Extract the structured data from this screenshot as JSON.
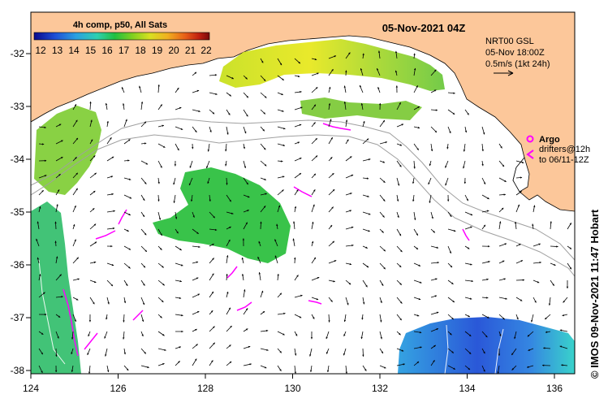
{
  "header": {
    "date_label": "05-Nov-2021 04Z"
  },
  "legend": {
    "title": "4h comp, p50, All Sats",
    "ticks": [
      "12",
      "13",
      "14",
      "15",
      "16",
      "17",
      "18",
      "19",
      "20",
      "21",
      "22"
    ],
    "colors": [
      "#0a0a8c",
      "#1f4fd6",
      "#2aa0e0",
      "#2fd0b0",
      "#20c040",
      "#7fd020",
      "#d8e020",
      "#f0b020",
      "#e86018",
      "#c02010",
      "#7a0a0a"
    ]
  },
  "info": {
    "model": "NRT00 GSL",
    "time": "05-Nov 18:00Z",
    "scale": "0.5m/s (1kt 24h)"
  },
  "argo_legend": {
    "argo_label": "Argo",
    "drifters_label": "drifters@12h",
    "drifters_range": "to 06/11-12Z"
  },
  "credit": "© IMOS 09-Nov-2021 11:47 Hobart",
  "chart_data": {
    "type": "map",
    "x_axis": {
      "ticks": [
        "124",
        "126",
        "128",
        "130",
        "132",
        "134",
        "136"
      ],
      "range": [
        124,
        136.5
      ]
    },
    "y_axis": {
      "ticks": [
        "-32",
        "-33",
        "-34",
        "-35",
        "-36",
        "-37",
        "-38"
      ],
      "range": [
        -38.1,
        -31.3
      ]
    },
    "colors": {
      "land": "#fcc79a",
      "ocean": "#ffffff",
      "argo": "#ff00ff",
      "isobath": "#a0a0a0"
    }
  }
}
